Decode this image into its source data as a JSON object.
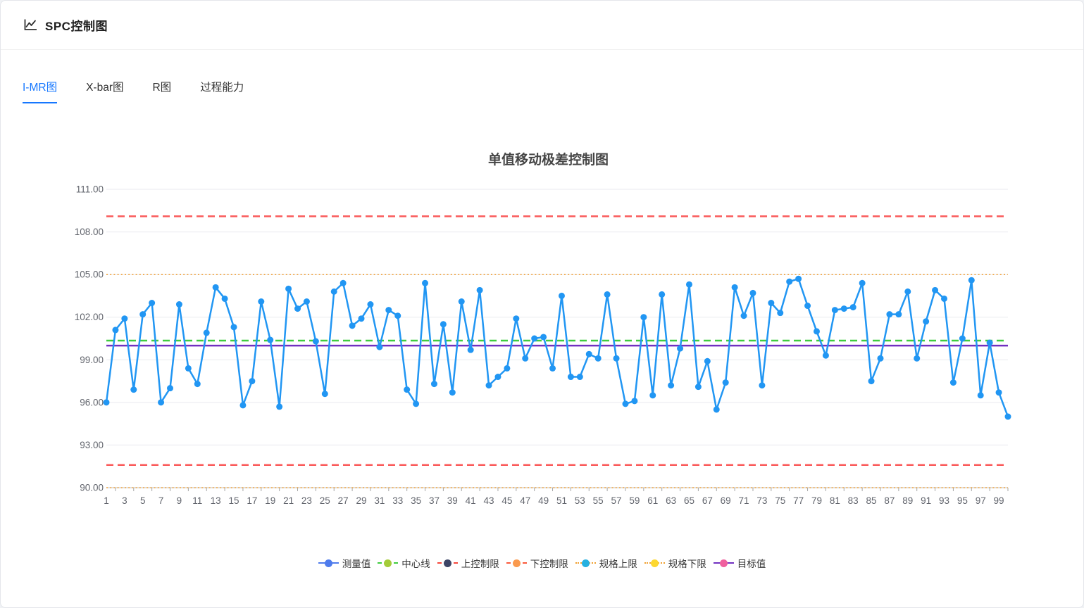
{
  "header": {
    "title": "SPC控制图"
  },
  "tabs": [
    {
      "id": "imr",
      "label": "I-MR图",
      "active": true
    },
    {
      "id": "xbar",
      "label": "X-bar图",
      "active": false
    },
    {
      "id": "r",
      "label": "R图",
      "active": false
    },
    {
      "id": "capability",
      "label": "过程能力",
      "active": false
    }
  ],
  "chart_data": {
    "type": "line",
    "title": "单值移动极差控制图",
    "ylim": [
      90,
      111
    ],
    "y_tick_labels": [
      "111.00",
      "108.00",
      "105.00",
      "102.00",
      "99.00",
      "96.00",
      "93.00",
      "90.00"
    ],
    "x_tick_labels": [
      "1",
      "3",
      "5",
      "7",
      "9",
      "11",
      "13",
      "15",
      "17",
      "19",
      "21",
      "23",
      "25",
      "27",
      "29",
      "31",
      "33",
      "35",
      "37",
      "39",
      "41",
      "43",
      "45",
      "47",
      "49",
      "51",
      "53",
      "55",
      "57",
      "59",
      "61",
      "63",
      "65",
      "67",
      "69",
      "71",
      "73",
      "75",
      "77",
      "79",
      "81",
      "83",
      "85",
      "87",
      "89",
      "91",
      "93",
      "95",
      "97",
      "99"
    ],
    "grid": true,
    "legend_position": "bottom",
    "series": [
      {
        "id": "measurement",
        "name": "测量值",
        "color": "#2196f3",
        "values": [
          96.0,
          101.1,
          101.9,
          96.9,
          102.2,
          103.0,
          96.0,
          97.0,
          102.9,
          98.4,
          97.3,
          100.9,
          104.1,
          103.3,
          101.3,
          95.8,
          97.5,
          103.1,
          100.4,
          95.7,
          104.0,
          102.6,
          103.1,
          100.3,
          96.6,
          103.8,
          104.4,
          101.4,
          101.9,
          102.9,
          99.9,
          102.5,
          102.1,
          96.9,
          95.9,
          104.4,
          97.3,
          101.5,
          96.7,
          103.1,
          99.7,
          103.9,
          97.2,
          97.8,
          98.4,
          101.9,
          99.1,
          100.5,
          100.6,
          98.4,
          103.5,
          97.8,
          97.8,
          99.4,
          99.1,
          103.6,
          99.1,
          95.9,
          96.1,
          102.0,
          96.5,
          103.6,
          97.2,
          99.8,
          104.3,
          97.1,
          98.9,
          95.5,
          97.4,
          104.1,
          102.1,
          103.7,
          97.2,
          103.0,
          102.3,
          104.5,
          104.7,
          102.8,
          101.0,
          99.3,
          102.5,
          102.6,
          102.7,
          104.4,
          97.5,
          99.1,
          102.2,
          102.2,
          103.8,
          99.1,
          101.7,
          103.9,
          103.3,
          97.4,
          100.5,
          104.6,
          96.5,
          100.2,
          96.7,
          95.0
        ]
      }
    ],
    "reference_lines": [
      {
        "id": "ucl",
        "name": "上控制限",
        "value": 109.1,
        "color": "#fa5a5a",
        "style": "dashed",
        "width": 2.5
      },
      {
        "id": "usl",
        "name": "规格上限",
        "value": 105.0,
        "color": "#efa13a",
        "style": "dotted",
        "width": 1.6
      },
      {
        "id": "center",
        "name": "中心线",
        "value": 100.35,
        "color": "#3fcc3f",
        "style": "dashed",
        "width": 2.5
      },
      {
        "id": "target",
        "name": "目标值",
        "value": 100.0,
        "color": "#7030c0",
        "style": "solid",
        "width": 2.5
      },
      {
        "id": "lcl",
        "name": "下控制限",
        "value": 91.6,
        "color": "#fa5a5a",
        "style": "dashed",
        "width": 2.5
      },
      {
        "id": "lsl",
        "name": "规格下限",
        "value": 90.0,
        "color": "#efa13a",
        "style": "dotted",
        "width": 1.6
      }
    ],
    "legend": [
      {
        "id": "measurement",
        "label": "测量值",
        "symbol_color": "#4e7bec",
        "line_color": "#4e7bec",
        "line_style": "solid"
      },
      {
        "id": "center",
        "label": "中心线",
        "symbol_color": "#a4cc39",
        "line_color": "#3fcc3f",
        "line_style": "dashed"
      },
      {
        "id": "ucl",
        "label": "上控制限",
        "symbol_color": "#3d4566",
        "line_color": "#f5473b",
        "line_style": "dashed"
      },
      {
        "id": "lcl",
        "label": "下控制限",
        "symbol_color": "#fa9a4e",
        "line_color": "#fa5a3c",
        "line_style": "dashed"
      },
      {
        "id": "usl",
        "label": "规格上限",
        "symbol_color": "#25b0e0",
        "line_color": "#f0a030",
        "line_style": "dotted"
      },
      {
        "id": "lsl",
        "label": "规格下限",
        "symbol_color": "#fdd830",
        "line_color": "#f0a030",
        "line_style": "dotted"
      },
      {
        "id": "target",
        "label": "目标值",
        "symbol_color": "#f0609e",
        "line_color": "#7030c0",
        "line_style": "solid"
      }
    ]
  }
}
